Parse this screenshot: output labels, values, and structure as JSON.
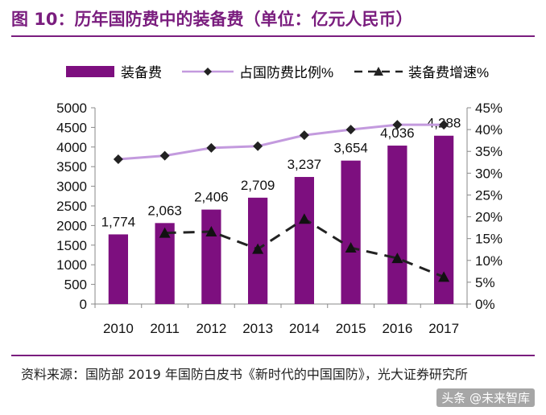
{
  "figure": {
    "title": "图 10：历年国防费中的装备费（单位：亿元人民币）",
    "source_prefix": "资料来源：国防部",
    "source_year": "2019",
    "source_rest": "年国防白皮书《新时代的中国国防》，光大证券研究所",
    "watermark": "头条 @未来智库"
  },
  "colors": {
    "bar": "#7d0f7f",
    "line_share": "#c39ade",
    "line_growth": "#222222",
    "title": "#7a1d7e"
  },
  "chart_data": {
    "type": "bar",
    "categories": [
      "2010",
      "2011",
      "2012",
      "2013",
      "2014",
      "2015",
      "2016",
      "2017"
    ],
    "series": [
      {
        "name": "装备费",
        "kind": "bar",
        "axis": "left",
        "values": [
          1774,
          2063,
          2406,
          2709,
          3237,
          3654,
          4036,
          4288
        ],
        "labels": [
          "1,774",
          "2,063",
          "2,406",
          "2,709",
          "3,237",
          "3,654",
          "4,036",
          "4,288"
        ]
      },
      {
        "name": "占国防费比例%",
        "kind": "line",
        "axis": "right",
        "marker": "diamond",
        "values": [
          33.2,
          34.0,
          35.8,
          36.2,
          38.7,
          40.0,
          41.1,
          41.1
        ]
      },
      {
        "name": "装备费增速%",
        "kind": "dashed-line",
        "axis": "right",
        "marker": "triangle",
        "values": [
          null,
          16.3,
          16.6,
          12.6,
          19.5,
          12.9,
          10.5,
          6.2
        ]
      }
    ],
    "y_left": {
      "ylim": [
        0,
        5000
      ],
      "ticks": [
        0,
        500,
        1000,
        1500,
        2000,
        2500,
        3000,
        3500,
        4000,
        4500,
        5000
      ],
      "tick_labels": [
        "0",
        "500",
        "1000",
        "1500",
        "2000",
        "2500",
        "3000",
        "3500",
        "4000",
        "4500",
        "5000"
      ]
    },
    "y_right": {
      "ylim": [
        0,
        45
      ],
      "ticks": [
        0,
        5,
        10,
        15,
        20,
        25,
        30,
        35,
        40,
        45
      ],
      "tick_labels": [
        "0%",
        "5%",
        "10%",
        "15%",
        "20%",
        "25%",
        "30%",
        "35%",
        "40%",
        "45%"
      ]
    },
    "legend_position": "top",
    "grid": false
  }
}
